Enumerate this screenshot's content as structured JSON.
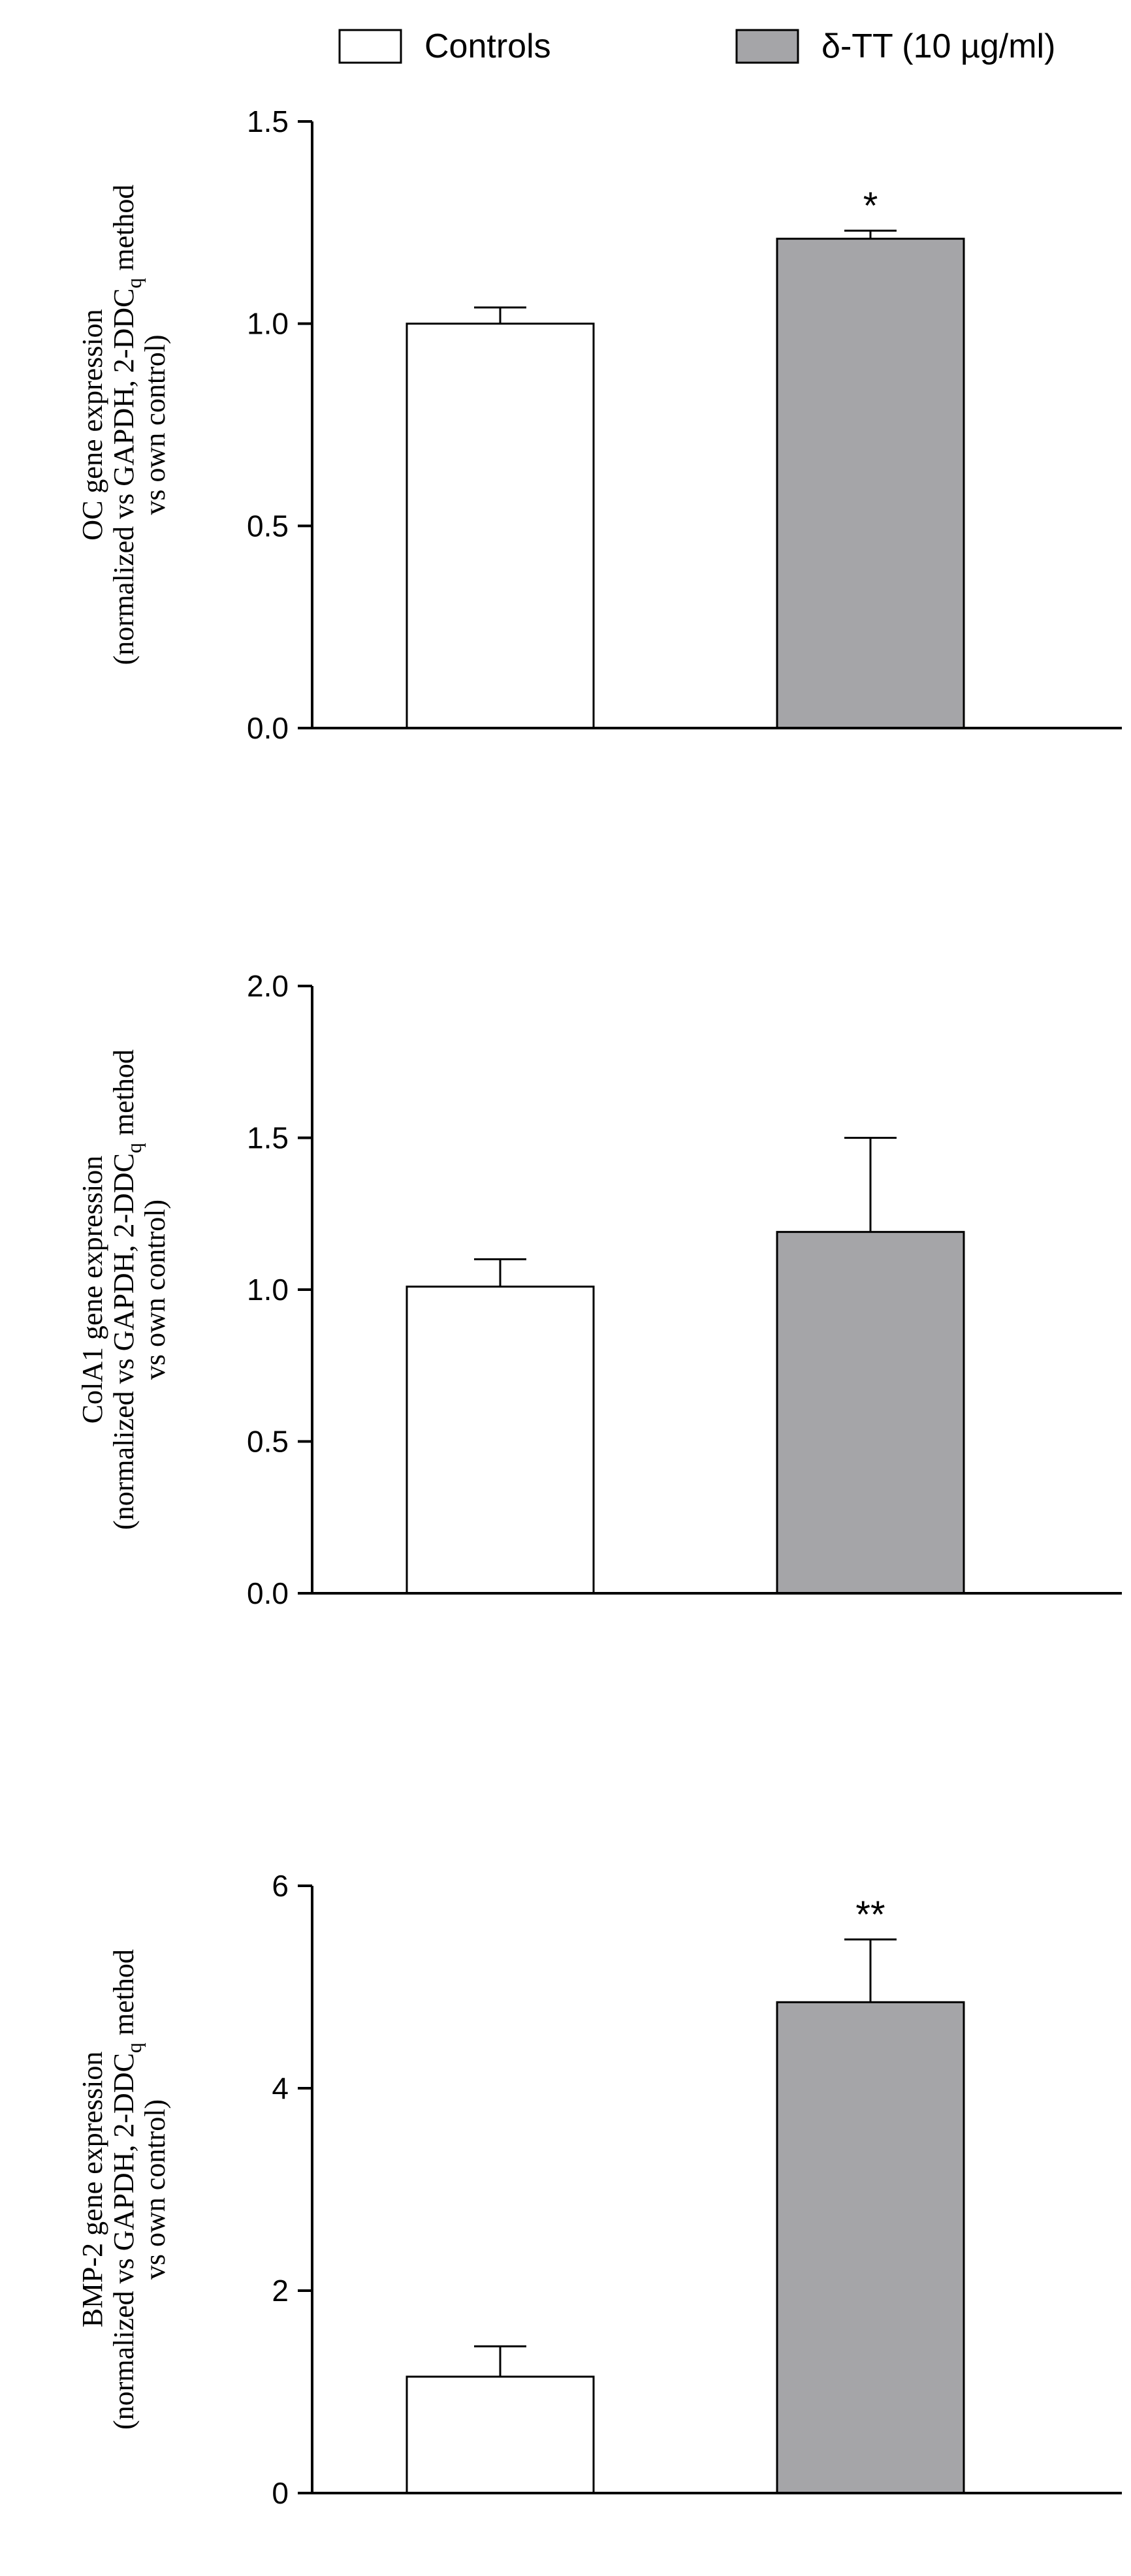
{
  "legend": {
    "placement": "top",
    "items": [
      {
        "label": "Controls",
        "color": "#ffffff"
      },
      {
        "label": "δ-TT  (10 µg/ml)",
        "color": "#a5a5a8"
      }
    ]
  },
  "chart_data": [
    {
      "type": "bar",
      "categories": [
        "Controls",
        "δ-TT  (10 µg/ml)"
      ],
      "values": [
        1.0,
        1.21
      ],
      "errors": [
        0.04,
        0.02
      ],
      "colors": [
        "#ffffff",
        "#a5a5a8"
      ],
      "ylim": [
        0,
        1.5
      ],
      "yticks": [
        0.0,
        0.5,
        1.0,
        1.5
      ],
      "ytick_labels": [
        "0.0",
        "0.5",
        "1.0",
        "1.5"
      ],
      "annotations": [
        "",
        "*"
      ],
      "ylabel": {
        "line1": "OC gene expression",
        "line2_pre": "(normalized vs GAPDH, 2-DDC",
        "line2_sub": "q",
        "line2_post": " method",
        "line3": "vs own control)"
      },
      "title": "",
      "xlabel": ""
    },
    {
      "type": "bar",
      "categories": [
        "Controls",
        "δ-TT  (10 µg/ml)"
      ],
      "values": [
        1.01,
        1.19
      ],
      "errors": [
        0.09,
        0.31
      ],
      "colors": [
        "#ffffff",
        "#a5a5a8"
      ],
      "ylim": [
        0,
        2.0
      ],
      "yticks": [
        0.0,
        0.5,
        1.0,
        1.5,
        2.0
      ],
      "ytick_labels": [
        "0.0",
        "0.5",
        "1.0",
        "1.5",
        "2.0"
      ],
      "annotations": [
        "",
        ""
      ],
      "ylabel": {
        "line1": "ColA1 gene expression",
        "line2_pre": "(normalized vs GAPDH, 2-DDC",
        "line2_sub": "q",
        "line2_post": " method",
        "line3": "vs own control)"
      },
      "title": "",
      "xlabel": ""
    },
    {
      "type": "bar",
      "categories": [
        "Controls",
        "δ-TT  (10 µg/ml)"
      ],
      "values": [
        1.15,
        4.85
      ],
      "errors": [
        0.3,
        0.62
      ],
      "colors": [
        "#ffffff",
        "#a5a5a8"
      ],
      "ylim": [
        0,
        6
      ],
      "yticks": [
        0,
        2,
        4,
        6
      ],
      "ytick_labels": [
        "0",
        "2",
        "4",
        "6"
      ],
      "annotations": [
        "",
        "**"
      ],
      "ylabel": {
        "line1": "BMP-2 gene expression",
        "line2_pre": "(normalized vs GAPDH, 2-DDC",
        "line2_sub": "q",
        "line2_post": " method",
        "line3": "vs own control)"
      },
      "title": "",
      "xlabel": ""
    }
  ]
}
